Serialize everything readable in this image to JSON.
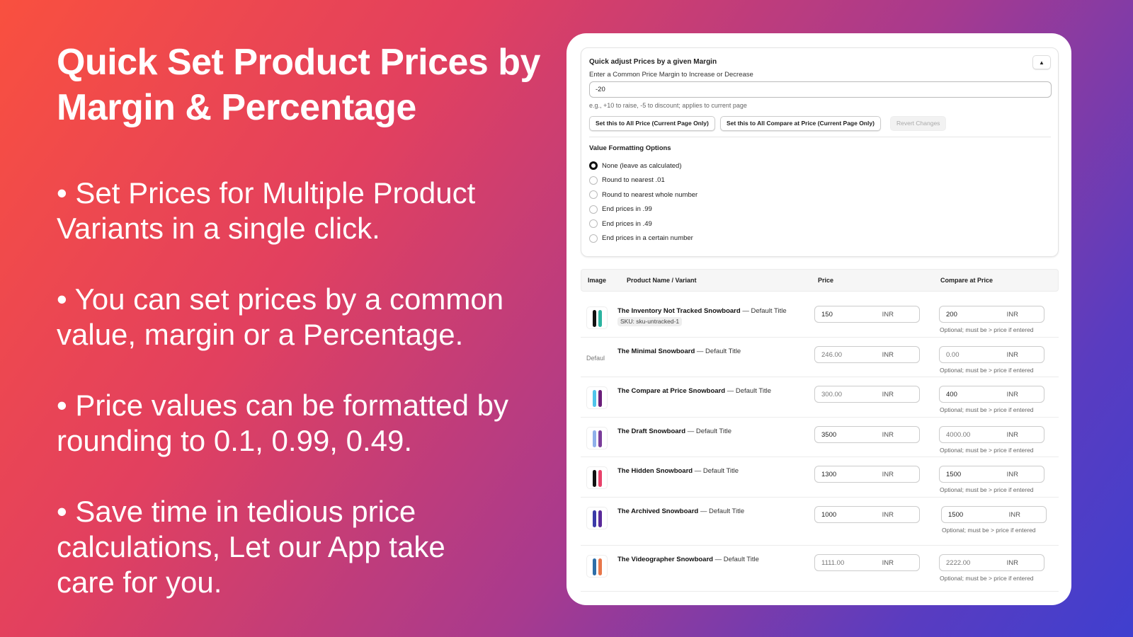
{
  "headline": "Quick Set Product Prices by Margin & Percentage",
  "bullets": [
    "• Set Prices for Multiple Product Variants in a single click.",
    "• You can set prices by a common value, margin or a Percentage.",
    "• Price values can be formatted by rounding to 0.1, 0.99, 0.49.",
    "• Save time in tedious price calculations, Let our App take care for you."
  ],
  "panel": {
    "title": "Quick adjust Prices by a given Margin",
    "subtitle": "Enter a Common Price Margin to Increase or Decrease",
    "collapse_icon": "▲",
    "margin_value": "-20",
    "hint": "e.g., +10 to raise, -5 to discount; applies to current page",
    "btn_set_price": "Set this to All Price (Current Page Only)",
    "btn_set_compare": "Set this to All Compare at Price (Current Page Only)",
    "btn_revert": "Revert Changes",
    "formatting_title": "Value Formatting Options",
    "options": [
      "None (leave as calculated)",
      "Round to nearest .01",
      "Round to nearest whole number",
      "End prices in .99",
      "End prices in .49",
      "End prices in a certain number"
    ],
    "selected_option": 0
  },
  "table": {
    "headers": [
      "Image",
      "Product Name / Variant",
      "Price",
      "Compare at Price"
    ],
    "currency": "INR",
    "compare_hint": "Optional; must be > price if entered",
    "rows": [
      {
        "name": "The Inventory Not Tracked Snowboard",
        "variant": "— Default Title",
        "sku": "SKU: sku-untracked-1",
        "price": "150",
        "compare": "200",
        "colors": [
          "#111",
          "#2bb3a0"
        ]
      },
      {
        "name": "The Minimal Snowboard",
        "variant": "— Default Title",
        "image_alt": "Defaul",
        "price": "246.00",
        "compare": "0.00"
      },
      {
        "name": "The Compare at Price Snowboard",
        "variant": "— Default Title",
        "price": "300.00",
        "compare": "400",
        "colors": [
          "#4fc4ea",
          "#6a1e7a"
        ]
      },
      {
        "name": "The Draft Snowboard",
        "variant": "— Default Title",
        "price": "3500",
        "compare": "4000.00",
        "colors": [
          "#8fb0ea",
          "#7a3d9a"
        ]
      },
      {
        "name": "The Hidden Snowboard",
        "variant": "— Default Title",
        "price": "1300",
        "compare": "1500",
        "colors": [
          "#111",
          "#e8426a"
        ]
      },
      {
        "name": "The Archived Snowboard",
        "variant": "— Default Title",
        "price": "1000",
        "compare": "1500",
        "colors": [
          "#3a3aa8",
          "#5a2a9a"
        ]
      },
      {
        "name": "The Videographer Snowboard",
        "variant": "— Default Title",
        "price": "1111.00",
        "compare": "2222.00",
        "colors": [
          "#2d6ea8",
          "#e8774a"
        ]
      }
    ]
  }
}
